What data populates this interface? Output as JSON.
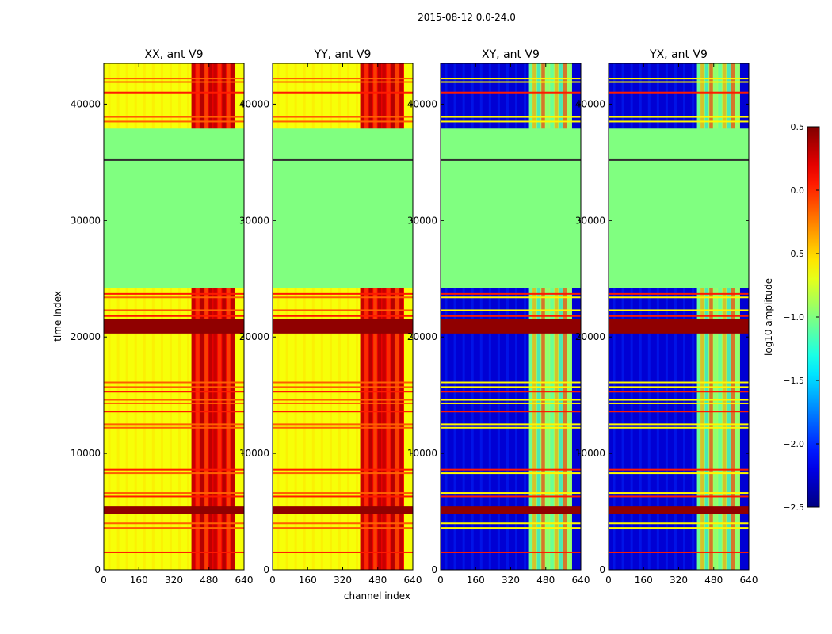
{
  "figure": {
    "suptitle": "2015-08-12 0.0-24.0",
    "xlabel": "channel index",
    "ylabel": "time index",
    "colorbar_label": "log10 amplitude"
  },
  "chart_data": {
    "type": "heatmap",
    "x_range": [
      0,
      640
    ],
    "y_range": [
      0,
      43500
    ],
    "x_ticks": [
      0,
      160,
      320,
      480,
      640
    ],
    "y_ticks": [
      0,
      10000,
      20000,
      30000,
      40000
    ],
    "colorbar": {
      "range": [
        -2.5,
        0.5
      ],
      "ticks": [
        0.5,
        0.0,
        -0.5,
        -1.0,
        -1.5,
        -2.0,
        -2.5
      ],
      "tick_labels": [
        "0.5",
        "0.0",
        "−0.5",
        "−1.0",
        "−1.5",
        "−2.0",
        "−2.5"
      ],
      "colormap": "jet"
    },
    "panels": [
      {
        "title": "XX, ant V9",
        "kind": "parallel"
      },
      {
        "title": "YY, ant V9",
        "kind": "parallel"
      },
      {
        "title": "XY, ant V9",
        "kind": "cross"
      },
      {
        "title": "YX, ant V9",
        "kind": "cross"
      }
    ],
    "flagged_block": {
      "time_range": [
        24200,
        35200
      ],
      "value": -1.0
    },
    "gap_block": {
      "time_range": [
        35200,
        37900
      ],
      "value": -1.0
    },
    "bright_channel_range": [
      400,
      600
    ],
    "background_level": {
      "parallel": -0.65,
      "cross": -2.25
    },
    "bright_level": {
      "parallel": 0.15,
      "cross": -0.9
    },
    "strong_rows": [
      20500,
      20800,
      21100,
      21400,
      5000,
      5300
    ],
    "rfi_rows": [
      1500,
      3600,
      4000,
      6300,
      6600,
      8300,
      8600,
      12200,
      12500,
      13600,
      14300,
      14600,
      15300,
      15700,
      16100,
      21800,
      22300,
      23400,
      23700,
      38500,
      38900,
      41000,
      41900,
      42200
    ]
  }
}
